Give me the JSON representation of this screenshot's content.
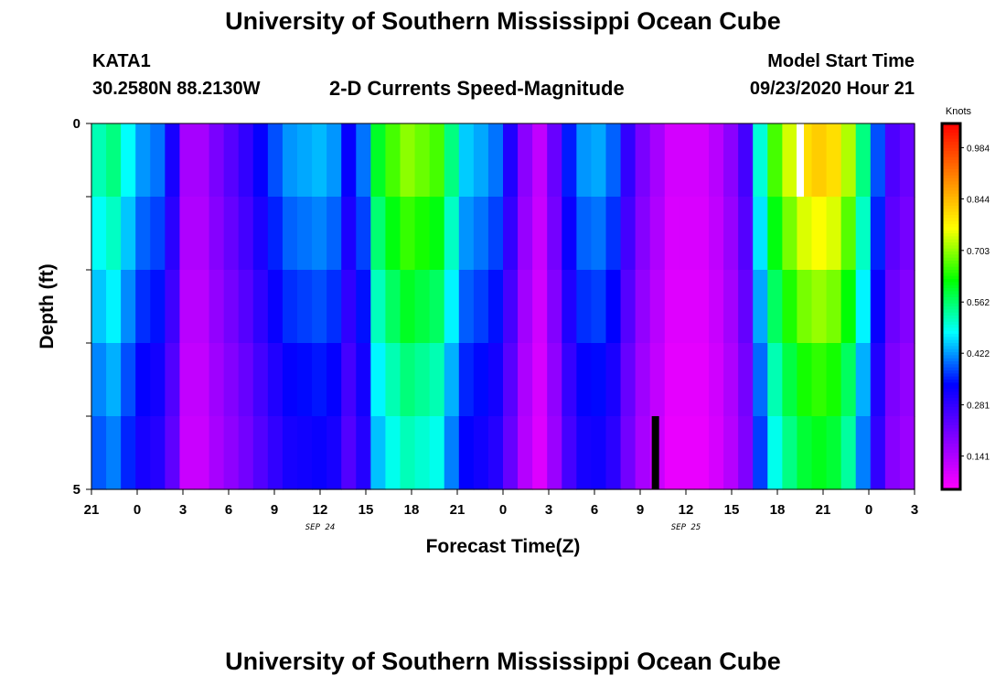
{
  "page": {
    "title_top": "University of Southern Mississippi Ocean Cube",
    "title_bottom": "University of Southern Mississippi Ocean Cube",
    "station": "KATA1",
    "coords": "30.2580N 88.2130W",
    "plot_title": "2-D Currents Speed-Magnitude",
    "model_label": "Model Start Time",
    "model_time": "09/23/2020 Hour 21"
  },
  "chart_data": {
    "type": "heatmap",
    "title": "2-D Currents Speed-Magnitude",
    "xlabel": "Forecast Time(Z)",
    "ylabel": "Depth (ft)",
    "colorbar_label": "Knots",
    "x_tick_labels": [
      "21",
      "0",
      "3",
      "6",
      "9",
      "12",
      "15",
      "18",
      "21",
      "0",
      "3",
      "6",
      "9",
      "12",
      "15",
      "18",
      "21",
      "0",
      "3"
    ],
    "date_labels": [
      {
        "text": "SEP 24",
        "tick_index": 5
      },
      {
        "text": "SEP 25",
        "tick_index": 13
      }
    ],
    "y_tick_labels": [
      {
        "text": "0",
        "depth": 0
      },
      {
        "text": "5",
        "depth": 5
      }
    ],
    "depth_range": [
      0,
      5
    ],
    "hours_range": [
      0,
      54
    ],
    "colorbar_ticks": [
      "0.984",
      "0.844",
      "0.703",
      "0.562",
      "0.422",
      "0.281",
      "0.141"
    ],
    "colorbar_tick_values": [
      0.984,
      0.844,
      0.703,
      0.562,
      0.422,
      0.281,
      0.141
    ],
    "colorbar_range": [
      0.05,
      1.05
    ],
    "colorscale": [
      "#ff00ff",
      "#8000ff",
      "#0000ff",
      "#00ffff",
      "#00ff00",
      "#ffff00",
      "#ff8000",
      "#ff0000"
    ],
    "layers": 5,
    "depth_profile": [
      1.0,
      0.93,
      0.86,
      0.79,
      0.74
    ],
    "surface_speed": [
      0.52,
      0.55,
      0.48,
      0.42,
      0.4,
      0.31,
      0.15,
      0.15,
      0.2,
      0.24,
      0.28,
      0.33,
      0.38,
      0.42,
      0.43,
      0.44,
      0.42,
      0.33,
      0.4,
      0.6,
      0.66,
      0.7,
      0.68,
      0.66,
      0.55,
      0.45,
      0.43,
      0.4,
      0.3,
      0.18,
      0.12,
      0.22,
      0.35,
      0.42,
      0.43,
      0.39,
      0.28,
      0.2,
      0.15,
      0.1,
      0.1,
      0.1,
      0.13,
      0.18,
      0.26,
      0.5,
      0.66,
      0.74,
      0.8,
      0.82,
      0.8,
      0.72,
      0.55,
      0.38,
      0.25,
      0.22
    ],
    "special_marks": [
      {
        "hour": 46.5,
        "layer": 0,
        "fill": "#ffffff"
      },
      {
        "hour": 37.0,
        "layer": 4,
        "fill": "#000000"
      }
    ]
  }
}
